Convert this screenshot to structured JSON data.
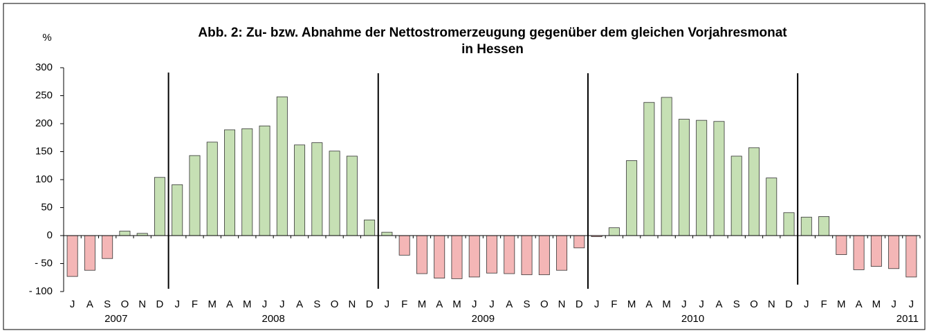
{
  "chart_data": {
    "type": "bar",
    "title": [
      "Abb. 2: Zu- bzw. Abnahme der Nettostromerzeugung gegenüber dem gleichen Vorjahresmonat",
      "in Hessen"
    ],
    "y_label": "%",
    "groups": [
      {
        "name": "2007",
        "categories": [
          "J",
          "A",
          "S",
          "O",
          "N",
          "D"
        ]
      },
      {
        "name": "2008",
        "categories": [
          "J",
          "F",
          "M",
          "A",
          "M",
          "J",
          "J",
          "A",
          "S",
          "O",
          "N",
          "D"
        ]
      },
      {
        "name": "2009",
        "categories": [
          "J",
          "F",
          "M",
          "A",
          "M",
          "J",
          "J",
          "A",
          "S",
          "O",
          "N",
          "D"
        ]
      },
      {
        "name": "2010",
        "categories": [
          "J",
          "F",
          "M",
          "A",
          "M",
          "J",
          "J",
          "A",
          "S",
          "O",
          "N",
          "D"
        ]
      },
      {
        "name": "2011",
        "categories": [
          "J",
          "F",
          "M",
          "A",
          "M",
          "J",
          "J"
        ]
      }
    ],
    "values": [
      -73,
      -62,
      -41,
      8,
      4,
      104,
      91,
      143,
      167,
      189,
      191,
      196,
      248,
      162,
      166,
      151,
      142,
      28,
      6,
      -35,
      -68,
      -76,
      -77,
      -74,
      -67,
      -68,
      -70,
      -70,
      -62,
      -22,
      -2,
      14,
      134,
      238,
      247,
      208,
      206,
      204,
      142,
      157,
      103,
      41,
      33,
      34,
      -34,
      -61,
      -55,
      -59,
      -74
    ],
    "positive_color": "#c6e0b4",
    "negative_color": "#f4b6b6",
    "ylim": [
      -100,
      300
    ],
    "yticks": [
      {
        "value": -100,
        "label": "- 100"
      },
      {
        "value": -50,
        "label": "- 50"
      },
      0,
      50,
      100,
      150,
      200,
      250,
      300
    ]
  }
}
